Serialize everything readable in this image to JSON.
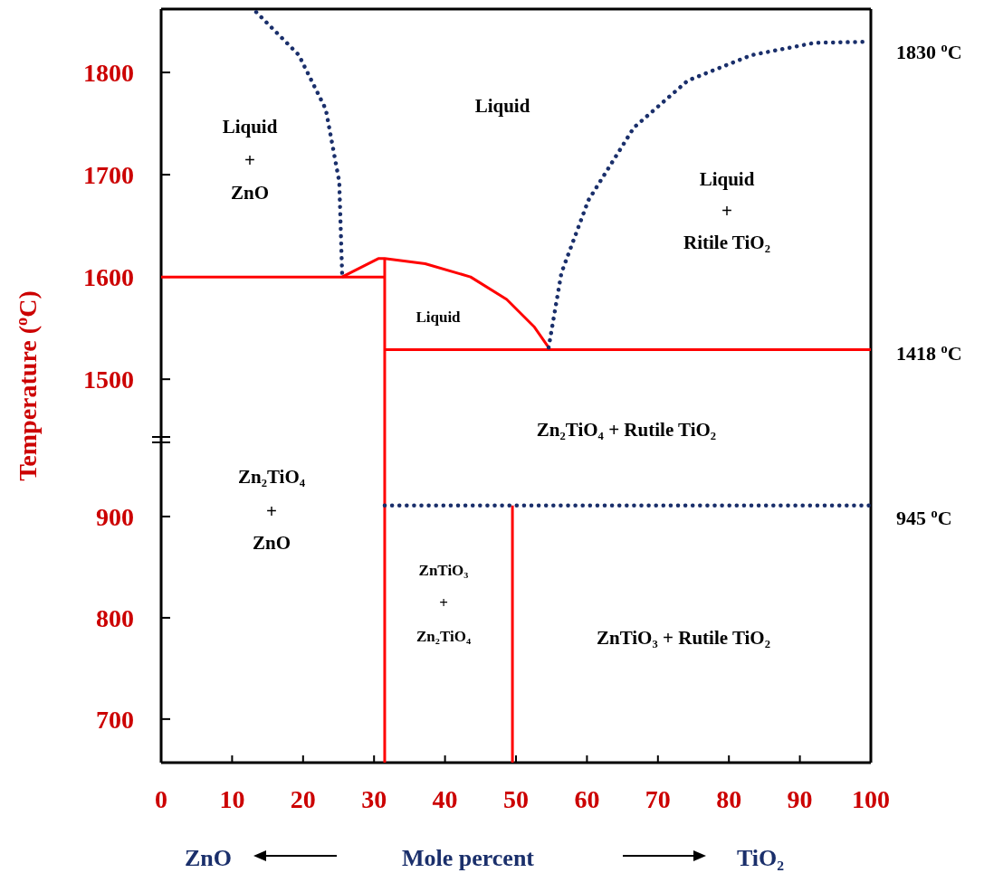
{
  "chart_data": [
    {
      "type": "line",
      "ylabel": "Temperature ($^{o}$C)",
      "xlim": [
        0,
        100
      ],
      "ylim": [
        1440,
        1862
      ],
      "yticks": [
        1500,
        1600,
        1700,
        1800
      ],
      "tick_labels": "y",
      "grid": false,
      "series": [
        {
          "color": "#ff0000",
          "line_style": "solid",
          "x": [
            0,
            31.5
          ],
          "values": [
            1600,
            1600
          ]
        },
        {
          "color": "#ff0000",
          "line_style": "solid",
          "x": [
            25.5,
            30.6,
            31.5,
            37.2,
            43.6,
            48.7,
            52.6,
            54.6
          ],
          "values": [
            1600,
            1618,
            1618,
            1613,
            1600,
            1578,
            1551,
            1531
          ]
        },
        {
          "color": "#ff0000",
          "line_style": "solid",
          "x": [
            31.5,
            31.5
          ],
          "values": [
            1618,
            1440
          ]
        },
        {
          "color": "#ff0000",
          "line_style": "solid",
          "x": [
            31.5,
            100
          ],
          "values": [
            1529,
            1529
          ]
        },
        {
          "color": "#1a2f6b",
          "line_style": "dotted",
          "x": [
            13.4,
            19.4,
            23.2,
            25.1,
            25.5
          ],
          "values": [
            1859,
            1817,
            1764,
            1693,
            1604
          ]
        },
        {
          "color": "#1a2f6b",
          "line_style": "dotted",
          "x": [
            54.6,
            56.4,
            60.2,
            66.6,
            74.2,
            83.2,
            92.1,
            99.5
          ],
          "values": [
            1531,
            1604,
            1675,
            1746,
            1792,
            1817,
            1829,
            1830
          ]
        }
      ],
      "annotations": [
        "Liquid",
        "+",
        "ZnO",
        "Liquid",
        "Liquid",
        "+",
        "Ritile TiO₂",
        "Liquid",
        "Zn₂TiO₄ + Rutile TiO₂",
        "1830 $^{o}$C",
        "1418 $^{o}$C"
      ]
    },
    {
      "type": "line",
      "xlabel": "Mole percent",
      "xlim": [
        0,
        100
      ],
      "xticks": [
        0,
        10,
        20,
        30,
        40,
        50,
        60,
        70,
        80,
        90,
        100
      ],
      "ylim": [
        657,
        975
      ],
      "yticks": [
        700,
        800,
        900
      ],
      "grid": false,
      "series": [
        {
          "color": "#ff0000",
          "line_style": "solid",
          "x": [
            31.5,
            31.5
          ],
          "values": [
            975,
            657
          ]
        },
        {
          "color": "#ff0000",
          "line_style": "solid",
          "x": [
            49.5,
            49.5
          ],
          "values": [
            911,
            657
          ]
        },
        {
          "color": "#1a2f6b",
          "line_style": "dotted",
          "x": [
            31.5,
            100
          ],
          "values": [
            911,
            911
          ]
        }
      ],
      "annotations": [
        "Zn₂TiO₄",
        "+",
        "ZnO",
        "ZnTiO₃",
        "+",
        "Zn₂TiO₄",
        "ZnTiO₃ + Rutile TiO₂",
        "945 $^{o}$C",
        "ZnO",
        "TiO₂"
      ]
    }
  ]
}
